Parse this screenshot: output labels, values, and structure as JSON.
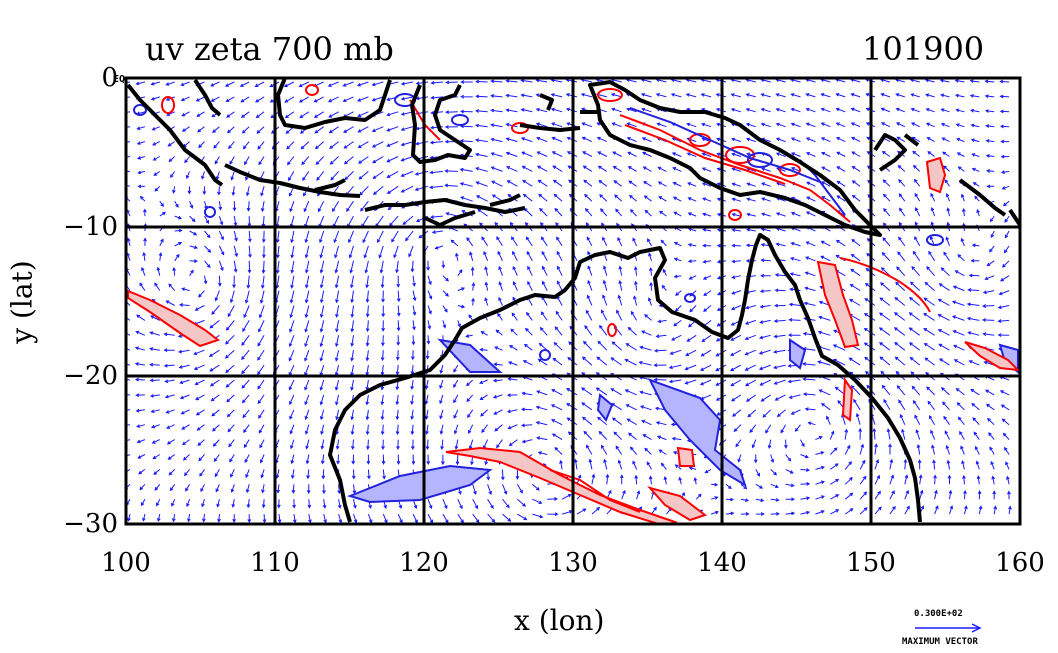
{
  "title_left": "uv zeta 700 mb",
  "title_right": "101900",
  "x_axis": {
    "label": "x (lon)",
    "ticks": [
      "100",
      "110",
      "120",
      "130",
      "140",
      "150",
      "160"
    ],
    "range": [
      100,
      160
    ]
  },
  "y_axis": {
    "label": "y (lat)",
    "ticks": [
      "0",
      "−10",
      "−20",
      "−30"
    ],
    "range": [
      -30,
      0
    ]
  },
  "eq_label": "EQ",
  "vector_key": {
    "value": "0.300E+02",
    "caption": "MAXIMUM VECTOR"
  },
  "colors": {
    "coast": "#000000",
    "vector": "#1a1aff",
    "positive_vorticity": "#ff0000",
    "positive_fill": "#f5c6c6",
    "negative_vorticity": "#2222dd",
    "negative_fill": "#b4b4ff",
    "grid": "#000000"
  }
}
